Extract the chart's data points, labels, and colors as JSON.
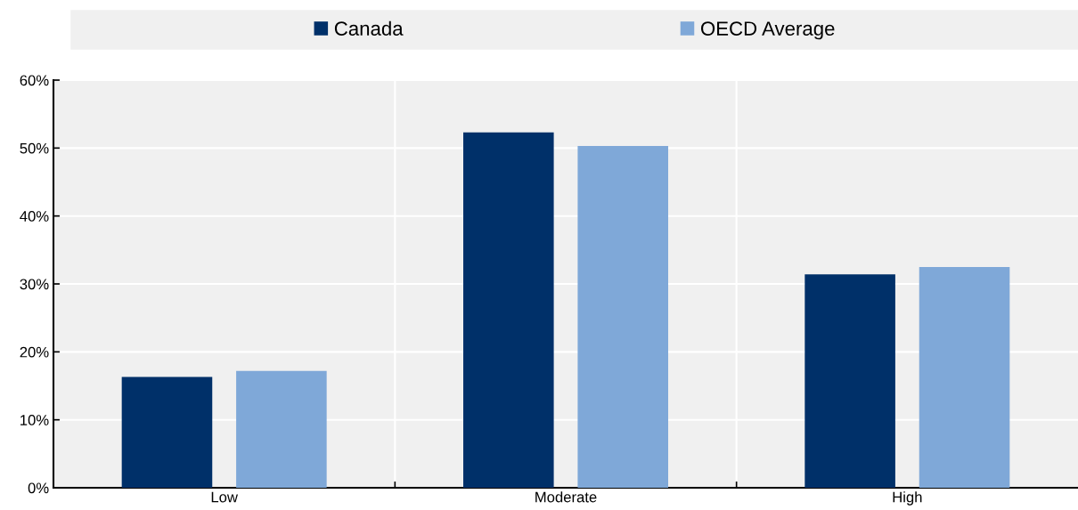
{
  "chart_data": {
    "type": "bar",
    "categories": [
      "Low",
      "Moderate",
      "High"
    ],
    "series": [
      {
        "name": "Canada",
        "color": "#003069",
        "values": [
          16.3,
          52.3,
          31.4
        ]
      },
      {
        "name": "OECD Average",
        "color": "#7fa8d8",
        "values": [
          17.2,
          50.3,
          32.5
        ]
      }
    ],
    "ylim": [
      0,
      60
    ],
    "yticks": [
      {
        "value": 0,
        "label": "0%"
      },
      {
        "value": 10,
        "label": "10%"
      },
      {
        "value": 20,
        "label": "20%"
      },
      {
        "value": 30,
        "label": "30%"
      },
      {
        "value": 40,
        "label": "40%"
      },
      {
        "value": 50,
        "label": "50%"
      },
      {
        "value": 60,
        "label": "60%"
      }
    ],
    "grid": true,
    "legend": "top"
  }
}
